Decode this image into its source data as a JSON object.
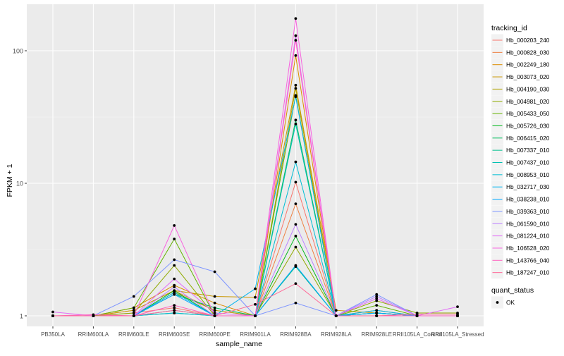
{
  "chart_data": {
    "type": "line",
    "title": "",
    "xlabel": "sample_name",
    "ylabel": "FPKM + 1",
    "y_scale": "log10",
    "ylim": [
      0.9,
      200
    ],
    "yticks": [
      1,
      10,
      100
    ],
    "ytick_labels": [
      "1",
      "10",
      "100"
    ],
    "grid": true,
    "legend_position": "right",
    "categories": [
      "PB350LA",
      "RRIM600LA",
      "RRIM600LE",
      "RRIM600SE",
      "RRIM600PE",
      "RRIM901LA",
      "RRIM928BA",
      "RRIM928LA",
      "RRIM928LE",
      "RRII105LA_Control",
      "RRII105LA_Stressed"
    ],
    "legend_title": "tracking_id",
    "series": [
      {
        "name": "Hb_000203_240",
        "color": "#F8766D",
        "values": [
          1,
          1,
          1.05,
          1.15,
          1,
          1,
          10.2,
          1,
          1.05,
          1,
          1
        ]
      },
      {
        "name": "Hb_000828_030",
        "color": "#EE8042",
        "values": [
          1,
          1,
          1.1,
          1.55,
          1.1,
          1,
          7,
          1,
          1,
          1,
          1
        ]
      },
      {
        "name": "Hb_002249_180",
        "color": "#DD8D00",
        "values": [
          1,
          1,
          1.15,
          1.7,
          1.25,
          1,
          92,
          1,
          1.1,
          1,
          1
        ]
      },
      {
        "name": "Hb_003073_020",
        "color": "#CA9700",
        "values": [
          1,
          1,
          1.1,
          1.55,
          1.4,
          1.38,
          55,
          1.1,
          1.05,
          1,
          1
        ]
      },
      {
        "name": "Hb_004190_030",
        "color": "#AEA200",
        "values": [
          1,
          1,
          1,
          1.5,
          1.1,
          1,
          52,
          1,
          1.05,
          1,
          1
        ]
      },
      {
        "name": "Hb_004981_020",
        "color": "#8FAA00",
        "values": [
          1,
          1,
          1.05,
          2.4,
          1,
          1,
          3.3,
          1,
          1.3,
          1.05,
          1.05
        ]
      },
      {
        "name": "Hb_005433_050",
        "color": "#64B200",
        "values": [
          1,
          1,
          1.15,
          3.8,
          1,
          1,
          46,
          1,
          1.2,
          1,
          1
        ]
      },
      {
        "name": "Hb_005726_030",
        "color": "#00B81B",
        "values": [
          1,
          1,
          1,
          1.55,
          1,
          1,
          4,
          1,
          1,
          1,
          1
        ]
      },
      {
        "name": "Hb_006415_020",
        "color": "#00BD5C",
        "values": [
          1,
          1,
          1,
          1.45,
          1.15,
          1,
          30,
          1,
          1.05,
          1,
          1
        ]
      },
      {
        "name": "Hb_007337_010",
        "color": "#00C08E",
        "values": [
          1,
          1,
          1,
          1.05,
          1,
          1,
          2.35,
          1,
          1,
          1,
          1
        ]
      },
      {
        "name": "Hb_007437_010",
        "color": "#00C1B3",
        "values": [
          1,
          1,
          1,
          1.1,
          1,
          1,
          28,
          1,
          1.05,
          1,
          1
        ]
      },
      {
        "name": "Hb_008953_010",
        "color": "#00BDD4",
        "values": [
          1,
          1,
          1,
          1.05,
          1,
          1,
          14.5,
          1,
          1,
          1,
          1
        ]
      },
      {
        "name": "Hb_032717_030",
        "color": "#00B4EF",
        "values": [
          1,
          1,
          1,
          1.5,
          1,
          1.6,
          45,
          1,
          1.1,
          1,
          1
        ]
      },
      {
        "name": "Hb_038238_010",
        "color": "#00A7FF",
        "values": [
          1,
          1,
          1,
          1.45,
          1,
          1,
          2.4,
          1,
          1.05,
          1,
          1
        ]
      },
      {
        "name": "Hb_039363_010",
        "color": "#7F96FF",
        "values": [
          1,
          1,
          1.4,
          2.65,
          2.15,
          1,
          1.25,
          1,
          1.45,
          1,
          1
        ]
      },
      {
        "name": "Hb_061590_010",
        "color": "#BC81FF",
        "values": [
          1,
          1,
          1,
          1.65,
          1,
          1,
          4.9,
          1,
          1.4,
          1,
          1
        ]
      },
      {
        "name": "Hb_081224_010",
        "color": "#E26EF7",
        "values": [
          1.07,
          1,
          1,
          1.9,
          1.05,
          1,
          130,
          1,
          1.35,
          1,
          1.17
        ]
      },
      {
        "name": "Hb_106528_020",
        "color": "#F863DF",
        "values": [
          1,
          1,
          1,
          4.8,
          1,
          1,
          175,
          1,
          1,
          1,
          1
        ]
      },
      {
        "name": "Hb_143766_040",
        "color": "#FF62BF",
        "values": [
          1,
          1.02,
          1,
          1.2,
          1,
          1,
          120,
          1,
          1,
          1,
          1
        ]
      },
      {
        "name": "Hb_187247_010",
        "color": "#FF6A98",
        "values": [
          1,
          1,
          1,
          1.1,
          1,
          1.22,
          1.75,
          1,
          1,
          1.03,
          1.03
        ]
      }
    ],
    "legend2": {
      "title": "quant_status",
      "items": [
        {
          "label": "OK"
        }
      ]
    }
  }
}
